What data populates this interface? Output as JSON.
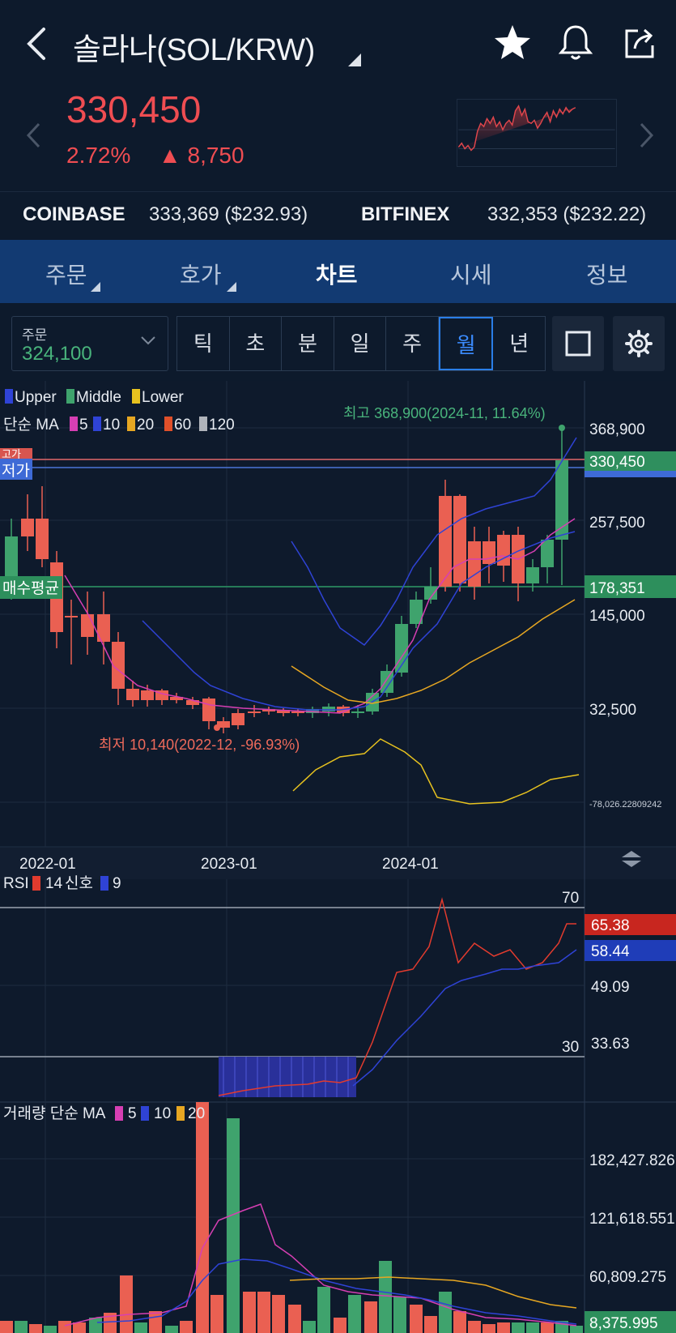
{
  "header": {
    "title": "솔라나(SOL/KRW)",
    "price": "330,450",
    "change_pct": "2.72%",
    "change_amt": "▲ 8,750"
  },
  "exchanges": [
    {
      "name": "COINBASE",
      "value": "333,369 ($232.93)"
    },
    {
      "name": "BITFINEX",
      "value": "332,353 ($232.22)"
    }
  ],
  "tabs": [
    {
      "label": "주문"
    },
    {
      "label": "호가"
    },
    {
      "label": "차트"
    },
    {
      "label": "시세"
    },
    {
      "label": "정보"
    }
  ],
  "order": {
    "label": "주문",
    "value": "324,100"
  },
  "periods": [
    "틱",
    "초",
    "분",
    "일",
    "주",
    "월",
    "년"
  ],
  "active_period": "월",
  "main_chart": {
    "legend_bb": [
      "Upper",
      "Middle",
      "Lower"
    ],
    "legend_ma_prefix": "단순 MA",
    "legend_ma": [
      "5",
      "10",
      "20",
      "60",
      "120"
    ],
    "high_label": "최고 368,900(2024-11, 11.64%)",
    "low_label": "최저 10,140(2022-12, -96.93%)",
    "axis_labels": [
      "368,900",
      "257,500",
      "145,000",
      "32,500",
      "-78,026.22809242"
    ],
    "current_price_tag": "330,450",
    "avg_price_tag": "178,351",
    "avg_label": "매수평균",
    "low_tag": "저가",
    "high_tag": "고가",
    "x_labels": [
      "2022-01",
      "2023-01",
      "2024-01"
    ]
  },
  "rsi_chart": {
    "legend_prefix": "RSI",
    "legend_rsi": "14",
    "legend_signal": "신호",
    "legend_signal_period": "9",
    "level_high": "70",
    "level_low": "30",
    "tag_rsi": "65.38",
    "tag_signal": "58.44",
    "axis_labels": [
      "49.09",
      "33.63"
    ]
  },
  "volume_chart": {
    "legend_prefix": "거래량 단순 MA",
    "legend_ma": [
      "5",
      "10",
      "20"
    ],
    "axis_labels": [
      "182,427.826",
      "121,618.551",
      "60,809.275"
    ],
    "tag": "8,375.995"
  },
  "colors": {
    "up": "#3fa36d",
    "down": "#ea6052",
    "red_text": "#ef4d52",
    "green_text": "#49b47c",
    "ma5": "#d63fb3",
    "ma10": "#2f43d6",
    "ma20": "#e7a722",
    "ma60": "#e0502a",
    "ma120": "#b0b4bb",
    "tab_bg": "#123a72"
  }
}
